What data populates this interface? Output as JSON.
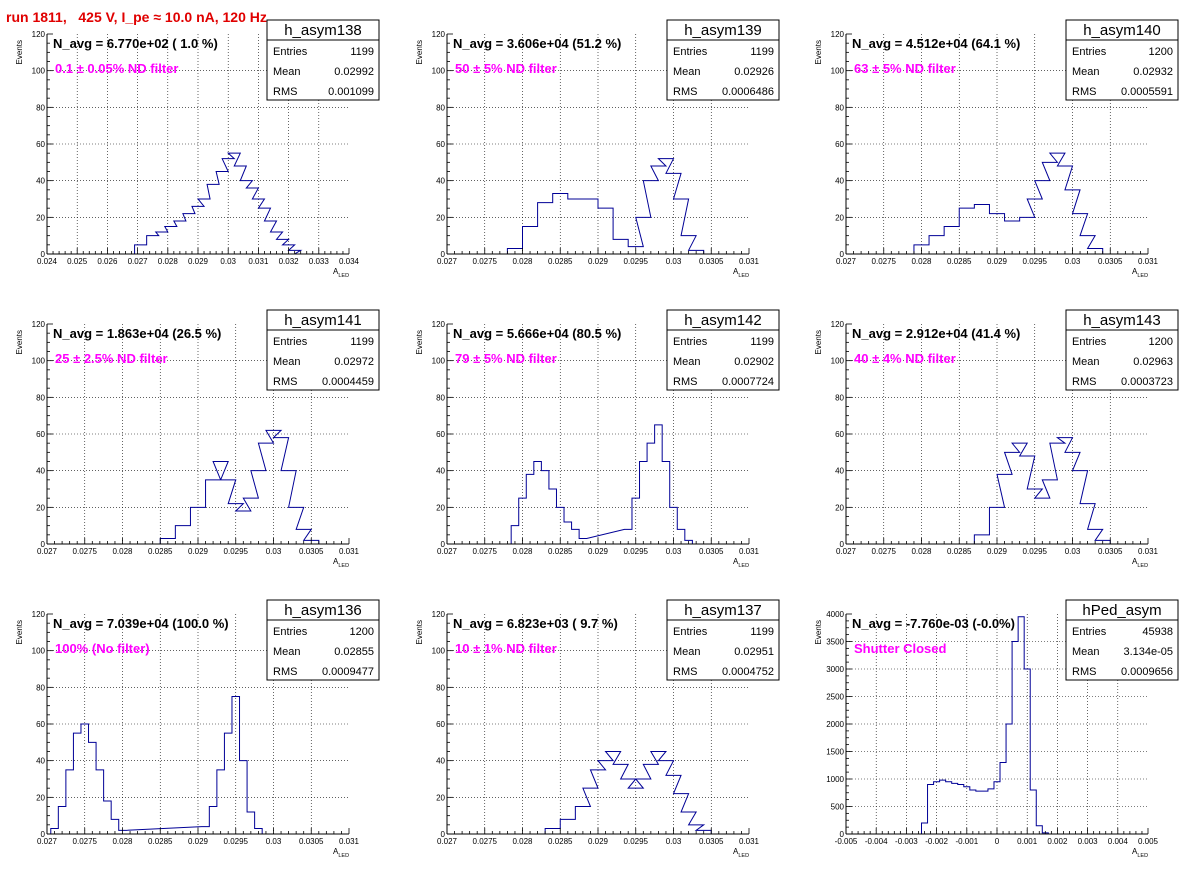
{
  "run_title": "run 1811,   425 V, I_pe ≈ 10.0 nA, 120 Hz",
  "colors": {
    "title": "#e00000",
    "hist": "#000096",
    "filter_label": "#ff00ff"
  },
  "chart_data": [
    {
      "type": "bar",
      "name": "h_asym138",
      "navg": "N_avg = 6.770e+02 ( 1.0 %)",
      "label": "0.1 ± 0.05% ND filter",
      "stats": [
        [
          "Entries",
          "1199"
        ],
        [
          "Mean",
          "0.02992"
        ],
        [
          "RMS",
          "0.001099"
        ]
      ],
      "xlabel": "A",
      "xlabel_sub": "LED",
      "ylabel": "Events",
      "xlim": [
        0.024,
        0.034
      ],
      "ylim": [
        0,
        120
      ],
      "xticks": [
        0.024,
        0.025,
        0.026,
        0.027,
        0.028,
        0.029,
        0.03,
        0.031,
        0.032,
        0.033,
        0.034
      ],
      "xtick_labels": [
        "0.024",
        "0.025",
        "0.026",
        "0.027",
        "0.028",
        "0.029",
        "0.03",
        "0.031",
        "0.032",
        "0.033",
        "0.034"
      ],
      "yticks": [
        0,
        20,
        40,
        60,
        80,
        100,
        120
      ],
      "ytick_labels": [
        "0",
        "20",
        "40",
        "60",
        "80",
        "100",
        "120"
      ],
      "x": [
        0.0271,
        0.0275,
        0.0278,
        0.0281,
        0.0284,
        0.0287,
        0.029,
        0.0292,
        0.0295,
        0.0298,
        0.03,
        0.0302,
        0.0304,
        0.0306,
        0.0308,
        0.031,
        0.0312,
        0.0314,
        0.0316,
        0.0318,
        0.032,
        0.0322,
        0.0324
      ],
      "values": [
        5,
        10,
        12,
        15,
        18,
        22,
        26,
        30,
        38,
        45,
        52,
        55,
        48,
        40,
        36,
        30,
        25,
        18,
        12,
        8,
        5,
        2,
        0
      ]
    },
    {
      "type": "bar",
      "name": "h_asym139",
      "navg": "N_avg = 3.606e+04 (51.2 %)",
      "label": "50 ± 5% ND filter",
      "stats": [
        [
          "Entries",
          "1199"
        ],
        [
          "Mean",
          "0.02926"
        ],
        [
          "RMS",
          "0.0006486"
        ]
      ],
      "xlabel": "A",
      "xlabel_sub": "LED",
      "ylabel": "Events",
      "xlim": [
        0.027,
        0.031
      ],
      "ylim": [
        0,
        120
      ],
      "xticks": [
        0.027,
        0.0275,
        0.028,
        0.0285,
        0.029,
        0.0295,
        0.03,
        0.0305,
        0.031
      ],
      "xtick_labels": [
        "0.027",
        "0.0275",
        "0.028",
        "0.0285",
        "0.029",
        "0.0295",
        "0.03",
        "0.0305",
        "0.031"
      ],
      "yticks": [
        0,
        20,
        40,
        60,
        80,
        100,
        120
      ],
      "ytick_labels": [
        "0",
        "20",
        "40",
        "60",
        "80",
        "100",
        "120"
      ],
      "x": [
        0.0279,
        0.0281,
        0.0283,
        0.0285,
        0.0287,
        0.0289,
        0.0291,
        0.0293,
        0.0295,
        0.0296,
        0.0297,
        0.0298,
        0.0299,
        0.03,
        0.0301,
        0.0302,
        0.0303
      ],
      "values": [
        3,
        15,
        28,
        33,
        30,
        30,
        25,
        8,
        4,
        20,
        40,
        48,
        52,
        44,
        30,
        10,
        2
      ]
    },
    {
      "type": "bar",
      "name": "h_asym140",
      "navg": "N_avg = 4.512e+04 (64.1 %)",
      "label": "63 ± 5% ND filter",
      "stats": [
        [
          "Entries",
          "1200"
        ],
        [
          "Mean",
          "0.02932"
        ],
        [
          "RMS",
          "0.0005591"
        ]
      ],
      "xlabel": "A",
      "xlabel_sub": "LED",
      "ylabel": "Events",
      "xlim": [
        0.027,
        0.031
      ],
      "ylim": [
        0,
        120
      ],
      "xticks": [
        0.027,
        0.0275,
        0.028,
        0.0285,
        0.029,
        0.0295,
        0.03,
        0.0305,
        0.031
      ],
      "xtick_labels": [
        "0.027",
        "0.0275",
        "0.028",
        "0.0285",
        "0.029",
        "0.0295",
        "0.03",
        "0.0305",
        "0.031"
      ],
      "yticks": [
        0,
        20,
        40,
        60,
        80,
        100,
        120
      ],
      "ytick_labels": [
        "0",
        "20",
        "40",
        "60",
        "80",
        "100",
        "120"
      ],
      "x": [
        0.028,
        0.0282,
        0.0284,
        0.0286,
        0.0288,
        0.029,
        0.0292,
        0.0294,
        0.0295,
        0.0296,
        0.0297,
        0.0298,
        0.0299,
        0.03,
        0.0301,
        0.0302,
        0.0303
      ],
      "values": [
        5,
        10,
        15,
        25,
        27,
        22,
        18,
        20,
        30,
        40,
        50,
        55,
        48,
        35,
        22,
        10,
        3
      ]
    },
    {
      "type": "bar",
      "name": "h_asym141",
      "navg": "N_avg = 1.863e+04 (26.5 %)",
      "label": "25 ± 2.5% ND filter",
      "stats": [
        [
          "Entries",
          "1199"
        ],
        [
          "Mean",
          "0.02972"
        ],
        [
          "RMS",
          "0.0004459"
        ]
      ],
      "xlabel": "A",
      "xlabel_sub": "LED",
      "ylabel": "Events",
      "xlim": [
        0.027,
        0.031
      ],
      "ylim": [
        0,
        120
      ],
      "xticks": [
        0.027,
        0.0275,
        0.028,
        0.0285,
        0.029,
        0.0295,
        0.03,
        0.0305,
        0.031
      ],
      "xtick_labels": [
        "0.027",
        "0.0275",
        "0.028",
        "0.0285",
        "0.029",
        "0.0295",
        "0.03",
        "0.0305",
        "0.031"
      ],
      "yticks": [
        0,
        20,
        40,
        60,
        80,
        100,
        120
      ],
      "ytick_labels": [
        "0",
        "20",
        "40",
        "60",
        "80",
        "100",
        "120"
      ],
      "x": [
        0.0286,
        0.0288,
        0.029,
        0.0292,
        0.0293,
        0.0294,
        0.0295,
        0.0296,
        0.0297,
        0.0298,
        0.0299,
        0.03,
        0.0301,
        0.0302,
        0.0303,
        0.0304,
        0.0305
      ],
      "values": [
        3,
        10,
        20,
        35,
        45,
        35,
        22,
        18,
        25,
        40,
        55,
        62,
        58,
        40,
        20,
        8,
        2
      ]
    },
    {
      "type": "bar",
      "name": "h_asym142",
      "navg": "N_avg = 5.666e+04 (80.5 %)",
      "label": "79 ± 5% ND filter",
      "stats": [
        [
          "Entries",
          "1199"
        ],
        [
          "Mean",
          "0.02902"
        ],
        [
          "RMS",
          "0.0007724"
        ]
      ],
      "xlabel": "A",
      "xlabel_sub": "LED",
      "ylabel": "Events",
      "xlim": [
        0.027,
        0.031
      ],
      "ylim": [
        0,
        120
      ],
      "xticks": [
        0.027,
        0.0275,
        0.028,
        0.0285,
        0.029,
        0.0295,
        0.03,
        0.0305,
        0.031
      ],
      "xtick_labels": [
        "0.027",
        "0.0275",
        "0.028",
        "0.0285",
        "0.029",
        "0.0295",
        "0.03",
        "0.0305",
        "0.031"
      ],
      "yticks": [
        0,
        20,
        40,
        60,
        80,
        100,
        120
      ],
      "ytick_labels": [
        "0",
        "20",
        "40",
        "60",
        "80",
        "100",
        "120"
      ],
      "x": [
        0.0279,
        0.028,
        0.0281,
        0.0282,
        0.0283,
        0.0284,
        0.0285,
        0.0286,
        0.0287,
        0.0288,
        0.0294,
        0.0295,
        0.0296,
        0.0297,
        0.0298,
        0.0299,
        0.03,
        0.0301,
        0.0302
      ],
      "values": [
        10,
        25,
        38,
        45,
        40,
        30,
        20,
        12,
        8,
        3,
        8,
        25,
        45,
        55,
        65,
        45,
        20,
        8,
        2
      ]
    },
    {
      "type": "bar",
      "name": "h_asym143",
      "navg": "N_avg = 2.912e+04 (41.4 %)",
      "label": "40 ± 4% ND filter",
      "stats": [
        [
          "Entries",
          "1200"
        ],
        [
          "Mean",
          "0.02963"
        ],
        [
          "RMS",
          "0.0003723"
        ]
      ],
      "xlabel": "A",
      "xlabel_sub": "LED",
      "ylabel": "Events",
      "xlim": [
        0.027,
        0.031
      ],
      "ylim": [
        0,
        120
      ],
      "xticks": [
        0.027,
        0.0275,
        0.028,
        0.0285,
        0.029,
        0.0295,
        0.03,
        0.0305,
        0.031
      ],
      "xtick_labels": [
        "0.027",
        "0.0275",
        "0.028",
        "0.0285",
        "0.029",
        "0.0295",
        "0.03",
        "0.0305",
        "0.031"
      ],
      "yticks": [
        0,
        20,
        40,
        60,
        80,
        100,
        120
      ],
      "ytick_labels": [
        "0",
        "20",
        "40",
        "60",
        "80",
        "100",
        "120"
      ],
      "x": [
        0.0288,
        0.029,
        0.0291,
        0.0292,
        0.0293,
        0.0294,
        0.0295,
        0.0296,
        0.0297,
        0.0298,
        0.0299,
        0.03,
        0.0301,
        0.0302,
        0.0303,
        0.0304
      ],
      "values": [
        5,
        20,
        38,
        50,
        55,
        48,
        30,
        25,
        35,
        55,
        58,
        50,
        40,
        22,
        8,
        2
      ]
    },
    {
      "type": "bar",
      "name": "h_asym136",
      "navg": "N_avg = 7.039e+04 (100.0 %)",
      "label": "100% (No filter)",
      "stats": [
        [
          "Entries",
          "1200"
        ],
        [
          "Mean",
          "0.02855"
        ],
        [
          "RMS",
          "0.0009477"
        ]
      ],
      "xlabel": "A",
      "xlabel_sub": "LED",
      "ylabel": "Events",
      "xlim": [
        0.027,
        0.031
      ],
      "ylim": [
        0,
        120
      ],
      "xticks": [
        0.027,
        0.0275,
        0.028,
        0.0285,
        0.029,
        0.0295,
        0.03,
        0.0305,
        0.031
      ],
      "xtick_labels": [
        "0.027",
        "0.0275",
        "0.028",
        "0.0285",
        "0.029",
        "0.0295",
        "0.03",
        "0.0305",
        "0.031"
      ],
      "yticks": [
        0,
        20,
        40,
        60,
        80,
        100,
        120
      ],
      "ytick_labels": [
        "0",
        "20",
        "40",
        "60",
        "80",
        "100",
        "120"
      ],
      "x": [
        0.0271,
        0.0272,
        0.0273,
        0.0274,
        0.0275,
        0.0276,
        0.0277,
        0.0278,
        0.0279,
        0.028,
        0.0291,
        0.0292,
        0.0293,
        0.0294,
        0.0295,
        0.0296,
        0.0297,
        0.0298
      ],
      "values": [
        3,
        15,
        35,
        55,
        60,
        50,
        35,
        18,
        8,
        2,
        4,
        15,
        35,
        55,
        75,
        40,
        12,
        3
      ]
    },
    {
      "type": "bar",
      "name": "h_asym137",
      "navg": "N_avg = 6.823e+03 ( 9.7 %)",
      "label": "10 ± 1% ND filter",
      "stats": [
        [
          "Entries",
          "1199"
        ],
        [
          "Mean",
          "0.02951"
        ],
        [
          "RMS",
          "0.0004752"
        ]
      ],
      "xlabel": "A",
      "xlabel_sub": "LED",
      "ylabel": "Events",
      "xlim": [
        0.027,
        0.031
      ],
      "ylim": [
        0,
        120
      ],
      "xticks": [
        0.027,
        0.0275,
        0.028,
        0.0285,
        0.029,
        0.0295,
        0.03,
        0.0305,
        0.031
      ],
      "xtick_labels": [
        "0.027",
        "0.0275",
        "0.028",
        "0.0285",
        "0.029",
        "0.0295",
        "0.03",
        "0.0305",
        "0.031"
      ],
      "yticks": [
        0,
        20,
        40,
        60,
        80,
        100,
        120
      ],
      "ytick_labels": [
        "0",
        "20",
        "40",
        "60",
        "80",
        "100",
        "120"
      ],
      "x": [
        0.0284,
        0.0286,
        0.0288,
        0.0289,
        0.029,
        0.0291,
        0.0292,
        0.0293,
        0.0294,
        0.0295,
        0.0296,
        0.0297,
        0.0298,
        0.0299,
        0.03,
        0.0301,
        0.0302,
        0.0303,
        0.0304
      ],
      "values": [
        3,
        8,
        15,
        25,
        35,
        40,
        45,
        38,
        30,
        25,
        30,
        38,
        45,
        40,
        32,
        22,
        12,
        5,
        2
      ]
    },
    {
      "type": "bar",
      "name": "hPed_asym",
      "navg": "N_avg = -7.760e-03 (-0.0%)",
      "label": "Shutter Closed",
      "stats": [
        [
          "Entries",
          "45938"
        ],
        [
          "Mean",
          "3.134e-05"
        ],
        [
          "RMS",
          "0.0009656"
        ]
      ],
      "xlabel": "A",
      "xlabel_sub": "LED",
      "ylabel": "Events",
      "xlim": [
        -0.005,
        0.005
      ],
      "ylim": [
        0,
        4000
      ],
      "xticks": [
        -0.005,
        -0.004,
        -0.003,
        -0.002,
        -0.001,
        0,
        0.001,
        0.002,
        0.003,
        0.004,
        0.005
      ],
      "xtick_labels": [
        "-0.005",
        "-0.004",
        "-0.003",
        "-0.002",
        "-0.001",
        "0",
        "0.001",
        "0.002",
        "0.003",
        "0.004",
        "0.005"
      ],
      "yticks": [
        0,
        500,
        1000,
        1500,
        2000,
        2500,
        3000,
        3500,
        4000
      ],
      "ytick_labels": [
        "0",
        "500",
        "1000",
        "1500",
        "2000",
        "2500",
        "3000",
        "3500",
        "4000"
      ],
      "x": [
        -0.0024,
        -0.0022,
        -0.002,
        -0.0018,
        -0.0016,
        -0.0014,
        -0.0012,
        -0.001,
        -0.0008,
        -0.0006,
        -0.0004,
        -0.0002,
        0.0,
        0.0002,
        0.0004,
        0.0006,
        0.0008,
        0.001,
        0.0012,
        0.0014,
        0.0016
      ],
      "values": [
        200,
        900,
        950,
        980,
        950,
        920,
        900,
        860,
        800,
        780,
        780,
        820,
        950,
        1300,
        2000,
        3500,
        3950,
        3000,
        800,
        150,
        20
      ]
    }
  ]
}
